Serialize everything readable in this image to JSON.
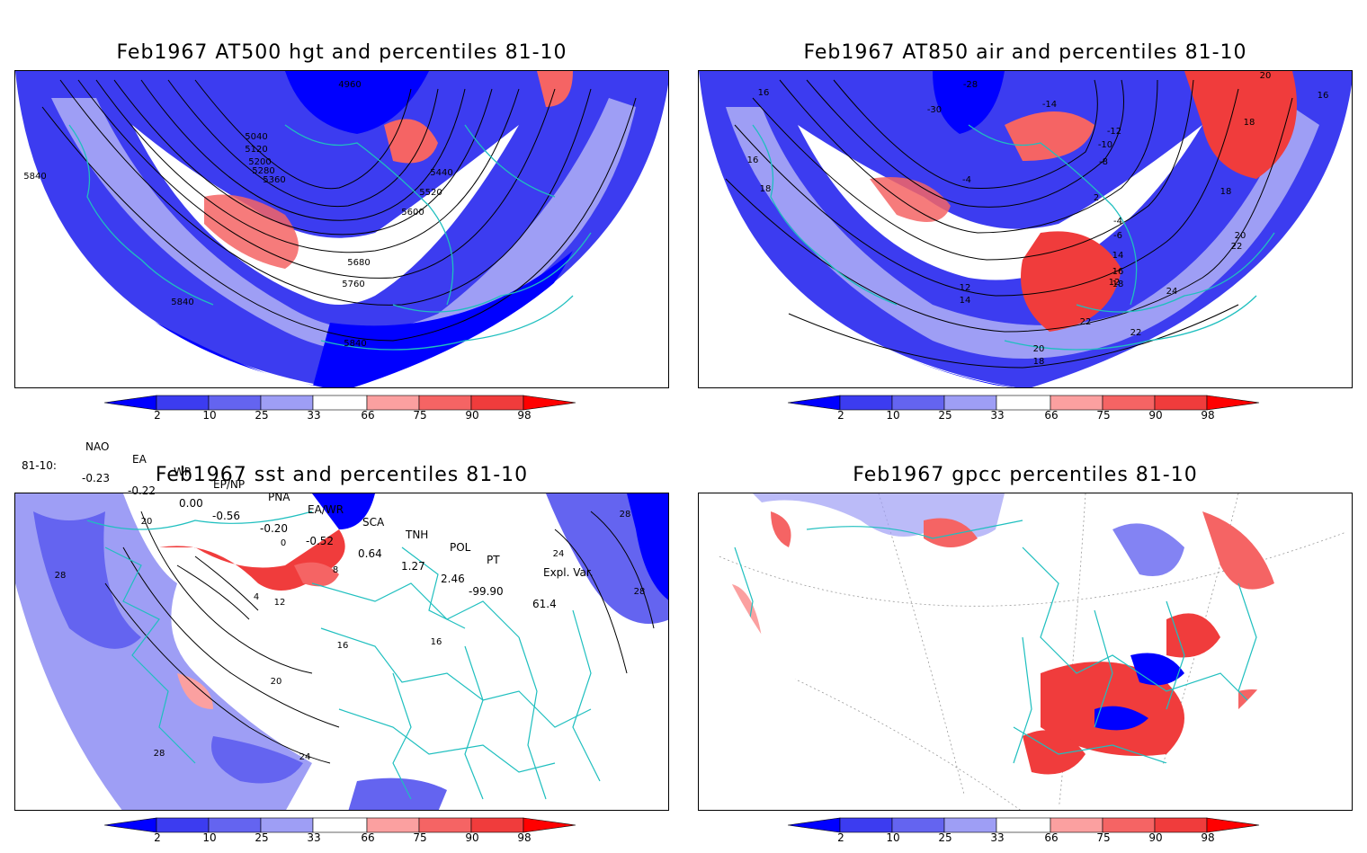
{
  "panels": [
    {
      "title": "Feb1967 AT500 hgt and percentiles 81-10",
      "contour_labels": [
        "4960",
        "5040",
        "5120",
        "5200",
        "5280",
        "5360",
        "5440",
        "5520",
        "5600",
        "5680",
        "5760",
        "5840",
        "5840",
        "5840"
      ]
    },
    {
      "title": "Feb1967 AT850 air and percentiles 81-10",
      "contour_labels": [
        "16",
        "16",
        "18",
        "-28",
        "-30",
        "-14",
        "-12",
        "-10",
        "-8",
        "-4",
        "2",
        "-4",
        "-6",
        "12",
        "14",
        "16",
        "18",
        "20",
        "22",
        "22",
        "24",
        "20",
        "18",
        "12",
        "14",
        "22",
        "18",
        "18",
        "16",
        "20"
      ]
    },
    {
      "title": "Feb1967 sst and percentiles 81-10",
      "contour_labels": [
        "28",
        "20",
        "0",
        "4",
        "8",
        "12",
        "16",
        "16",
        "20",
        "24",
        "28",
        "24",
        "28",
        "28"
      ]
    },
    {
      "title": "Feb1967 gpcc percentiles 81-10",
      "contour_labels": []
    }
  ],
  "colorbar": {
    "ticks": [
      "2",
      "10",
      "25",
      "33",
      "66",
      "75",
      "90",
      "98"
    ],
    "colors": {
      "b4": "#0000ff",
      "b3": "#3c3cf0",
      "b2": "#6464f0",
      "b1": "#9e9ef5",
      "white": "#ffffff",
      "r1": "#fba0a0",
      "r2": "#f56464",
      "r3": "#f03c3c",
      "r4": "#ff0000"
    }
  },
  "indices": {
    "headers": [
      "NAO",
      "EA",
      "WP",
      "EP/NP",
      "PNA",
      "EA/WR",
      "SCA",
      "TNH",
      "POL",
      "PT",
      "Expl. Var."
    ],
    "row_label": "81-10:",
    "values": [
      "-0.23",
      "-0.22",
      "0.00",
      "-0.56",
      "-0.20",
      "-0.52",
      "0.64",
      "1.27",
      "2.46",
      "-99.90",
      "61.4"
    ]
  },
  "map_colors": {
    "coast": "#1fbfbf",
    "contour": "#000000"
  }
}
